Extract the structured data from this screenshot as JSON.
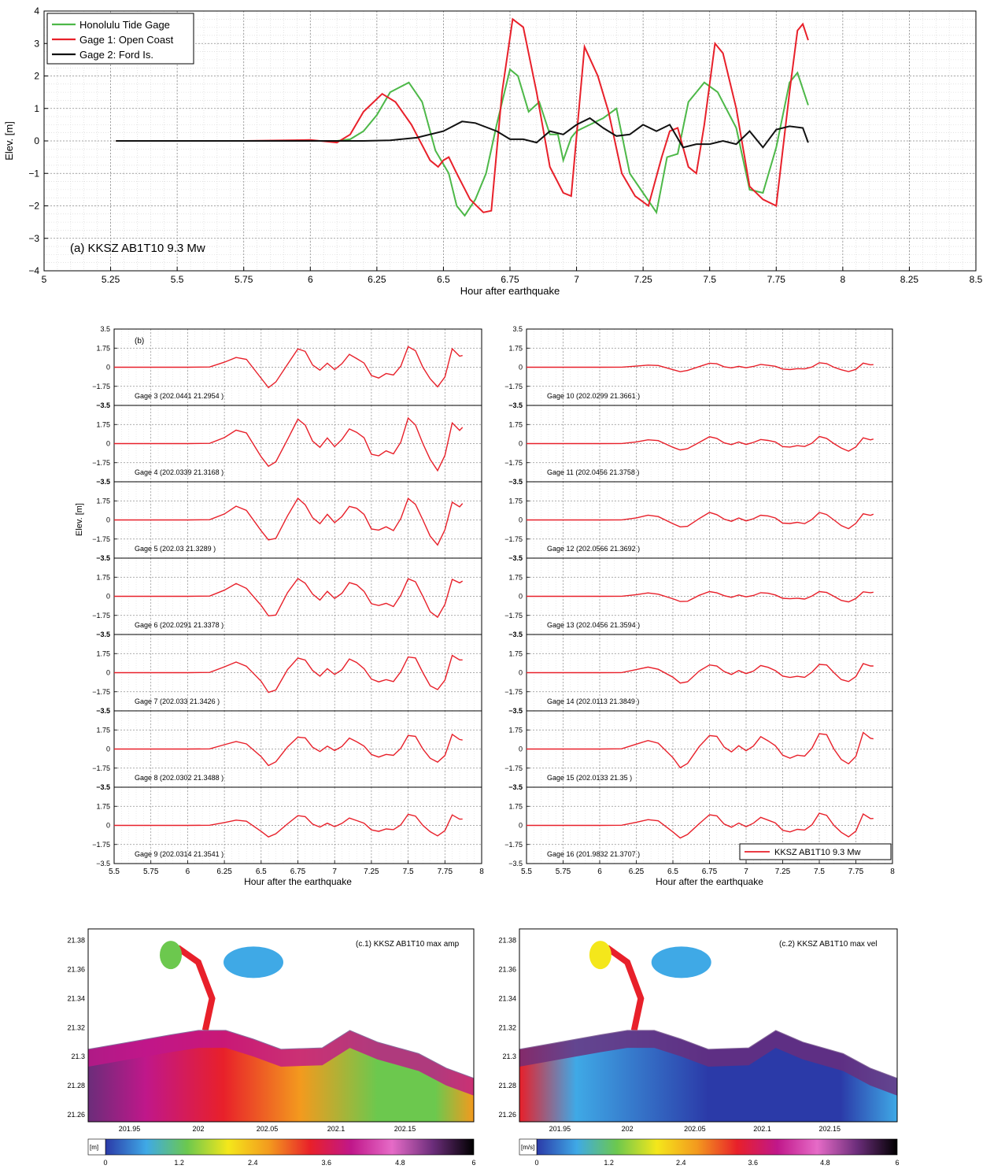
{
  "chart_data": [
    {
      "type": "line",
      "panel": "a",
      "title": "",
      "annotation": "(a)  KKSZ  AB1T10  9.3 Mw",
      "xlabel": "Hour after earthquake",
      "ylabel": "Elev. [m]",
      "xlim": [
        5,
        8.5
      ],
      "ylim": [
        -4,
        4
      ],
      "xticks": [
        "5",
        "5.25",
        "5.5",
        "5.75",
        "6",
        "6.25",
        "6.5",
        "6.75",
        "7",
        "7.25",
        "7.5",
        "7.75",
        "8",
        "8.25",
        "8.5"
      ],
      "yticks": [
        "4",
        "3",
        "2",
        "1",
        "0",
        "−1",
        "−2",
        "−3",
        "−4"
      ],
      "grid": true,
      "legend_position": "top-left",
      "series": [
        {
          "name": "Honolulu Tide Gage",
          "color": "#4db848",
          "points": [
            [
              5.27,
              0
            ],
            [
              5.5,
              0
            ],
            [
              5.75,
              0
            ],
            [
              6.0,
              0
            ],
            [
              6.1,
              0
            ],
            [
              6.15,
              0.05
            ],
            [
              6.2,
              0.3
            ],
            [
              6.25,
              0.8
            ],
            [
              6.3,
              1.5
            ],
            [
              6.37,
              1.8
            ],
            [
              6.42,
              1.2
            ],
            [
              6.47,
              -0.3
            ],
            [
              6.52,
              -1.0
            ],
            [
              6.55,
              -2.0
            ],
            [
              6.58,
              -2.3
            ],
            [
              6.62,
              -1.8
            ],
            [
              6.66,
              -1.0
            ],
            [
              6.7,
              0.5
            ],
            [
              6.75,
              2.2
            ],
            [
              6.78,
              2.0
            ],
            [
              6.82,
              0.9
            ],
            [
              6.86,
              1.2
            ],
            [
              6.9,
              0.2
            ],
            [
              6.93,
              0.2
            ],
            [
              6.95,
              -0.6
            ],
            [
              6.98,
              0.1
            ],
            [
              7.0,
              0.3
            ],
            [
              7.05,
              0.5
            ],
            [
              7.1,
              0.7
            ],
            [
              7.15,
              1.0
            ],
            [
              7.2,
              -1.0
            ],
            [
              7.25,
              -1.6
            ],
            [
              7.3,
              -2.2
            ],
            [
              7.34,
              -0.5
            ],
            [
              7.38,
              -0.4
            ],
            [
              7.42,
              1.2
            ],
            [
              7.48,
              1.8
            ],
            [
              7.53,
              1.5
            ],
            [
              7.6,
              0.4
            ],
            [
              7.65,
              -1.5
            ],
            [
              7.7,
              -1.6
            ],
            [
              7.75,
              -0.2
            ],
            [
              7.8,
              1.8
            ],
            [
              7.83,
              2.1
            ],
            [
              7.87,
              1.1
            ]
          ]
        },
        {
          "name": "Gage 1: Open Coast",
          "color": "#e8202a",
          "points": [
            [
              5.27,
              0
            ],
            [
              5.5,
              0
            ],
            [
              5.75,
              0
            ],
            [
              6.0,
              0.03
            ],
            [
              6.1,
              -0.05
            ],
            [
              6.15,
              0.2
            ],
            [
              6.2,
              0.9
            ],
            [
              6.27,
              1.45
            ],
            [
              6.32,
              1.2
            ],
            [
              6.38,
              0.5
            ],
            [
              6.45,
              -0.6
            ],
            [
              6.48,
              -0.8
            ],
            [
              6.5,
              -0.6
            ],
            [
              6.52,
              -0.5
            ],
            [
              6.55,
              -1.0
            ],
            [
              6.6,
              -1.8
            ],
            [
              6.65,
              -2.2
            ],
            [
              6.68,
              -2.15
            ],
            [
              6.72,
              1.5
            ],
            [
              6.76,
              3.75
            ],
            [
              6.8,
              3.5
            ],
            [
              6.85,
              1.5
            ],
            [
              6.9,
              -0.8
            ],
            [
              6.95,
              -1.6
            ],
            [
              6.98,
              -1.7
            ],
            [
              7.03,
              2.9
            ],
            [
              7.08,
              2.0
            ],
            [
              7.12,
              0.9
            ],
            [
              7.17,
              -1.0
            ],
            [
              7.22,
              -1.7
            ],
            [
              7.27,
              -2.0
            ],
            [
              7.32,
              -0.5
            ],
            [
              7.35,
              0.3
            ],
            [
              7.38,
              0.4
            ],
            [
              7.42,
              -0.8
            ],
            [
              7.45,
              -1.0
            ],
            [
              7.48,
              0.5
            ],
            [
              7.52,
              3.0
            ],
            [
              7.55,
              2.7
            ],
            [
              7.6,
              1.0
            ],
            [
              7.65,
              -1.4
            ],
            [
              7.7,
              -1.8
            ],
            [
              7.75,
              -2.0
            ],
            [
              7.8,
              1.5
            ],
            [
              7.83,
              3.4
            ],
            [
              7.85,
              3.6
            ],
            [
              7.87,
              3.1
            ]
          ]
        },
        {
          "name": "Gage 2: Ford Is.",
          "color": "#111111",
          "points": [
            [
              5.27,
              0
            ],
            [
              5.5,
              0
            ],
            [
              5.75,
              0
            ],
            [
              6.0,
              0
            ],
            [
              6.2,
              0
            ],
            [
              6.3,
              0.02
            ],
            [
              6.4,
              0.1
            ],
            [
              6.5,
              0.3
            ],
            [
              6.57,
              0.6
            ],
            [
              6.62,
              0.55
            ],
            [
              6.7,
              0.3
            ],
            [
              6.75,
              0.05
            ],
            [
              6.8,
              0.05
            ],
            [
              6.85,
              -0.05
            ],
            [
              6.9,
              0.3
            ],
            [
              6.95,
              0.2
            ],
            [
              7.0,
              0.5
            ],
            [
              7.05,
              0.7
            ],
            [
              7.1,
              0.4
            ],
            [
              7.15,
              0.15
            ],
            [
              7.2,
              0.2
            ],
            [
              7.25,
              0.5
            ],
            [
              7.3,
              0.3
            ],
            [
              7.35,
              0.5
            ],
            [
              7.4,
              -0.2
            ],
            [
              7.45,
              -0.1
            ],
            [
              7.5,
              -0.1
            ],
            [
              7.55,
              0.0
            ],
            [
              7.6,
              -0.1
            ],
            [
              7.65,
              0.3
            ],
            [
              7.7,
              -0.2
            ],
            [
              7.75,
              0.35
            ],
            [
              7.8,
              0.45
            ],
            [
              7.85,
              0.4
            ],
            [
              7.87,
              -0.05
            ]
          ]
        }
      ]
    },
    {
      "type": "line",
      "panel": "b",
      "annotation": "(b)",
      "xlabel": "Hour after the earthquake",
      "ylabel": "Elev. [m]",
      "xlim": [
        5.5,
        8
      ],
      "ylim": [
        -3.5,
        3.5
      ],
      "xticks": [
        "5.5",
        "5.75",
        "6",
        "6.25",
        "6.5",
        "6.75",
        "7",
        "7.25",
        "7.5",
        "7.75",
        "8"
      ],
      "yticks": [
        "3.5",
        "1.75",
        "0",
        "−1.75",
        "−3.5"
      ],
      "grid": true,
      "legend_entry": "KKSZ  AB1T10 9.3 Mw",
      "legend_position": "bottom-right",
      "line_color": "#e8202a",
      "gages": [
        {
          "label": "Gage 3  (202.0441      21.2954 )",
          "column": "left",
          "row": 0,
          "amp": 1.0
        },
        {
          "label": "Gage 4  (202.0339      21.3168 )",
          "column": "left",
          "row": 1,
          "amp": 1.25
        },
        {
          "label": "Gage 5  (202.03      21.3289 )",
          "column": "left",
          "row": 2,
          "amp": 1.15
        },
        {
          "label": "Gage 6  (202.0291      21.3378 )",
          "column": "left",
          "row": 3,
          "amp": 1.05
        },
        {
          "label": "Gage 7  (202.033      21.3426 )",
          "column": "left",
          "row": 4,
          "amp": 0.95
        },
        {
          "label": "Gage 8  (202.0302      21.3488 )",
          "column": "left",
          "row": 5,
          "amp": 0.75
        },
        {
          "label": "Gage 9  (202.0314      21.3541 )",
          "column": "left",
          "row": 6,
          "amp": 0.55
        },
        {
          "label": "Gage 10  (202.0299      21.3661 )",
          "column": "right",
          "row": 0,
          "amp": 0.22
        },
        {
          "label": "Gage 11  (202.0456      21.3758 )",
          "column": "right",
          "row": 1,
          "amp": 0.35
        },
        {
          "label": "Gage 12  (202.0566      21.3692 )",
          "column": "right",
          "row": 2,
          "amp": 0.4
        },
        {
          "label": "Gage 13  (202.0456      21.3594 )",
          "column": "right",
          "row": 3,
          "amp": 0.28
        },
        {
          "label": "Gage 14  (202.0113      21.3849 )",
          "column": "right",
          "row": 4,
          "amp": 0.5
        },
        {
          "label": "Gage 15  (202.0133      21.35 )",
          "column": "right",
          "row": 5,
          "amp": 0.85
        },
        {
          "label": "Gage 16  (201.9832      21.3707 )",
          "column": "right",
          "row": 6,
          "amp": 0.6
        }
      ],
      "base_waveform": [
        [
          5.5,
          0
        ],
        [
          6.0,
          0
        ],
        [
          6.15,
          0.02
        ],
        [
          6.25,
          0.5
        ],
        [
          6.33,
          1.0
        ],
        [
          6.4,
          0.7
        ],
        [
          6.5,
          -0.9
        ],
        [
          6.55,
          -1.8
        ],
        [
          6.6,
          -1.5
        ],
        [
          6.68,
          0.3
        ],
        [
          6.75,
          1.6
        ],
        [
          6.8,
          1.3
        ],
        [
          6.85,
          0.2
        ],
        [
          6.9,
          -0.3
        ],
        [
          6.95,
          0.4
        ],
        [
          7.0,
          -0.2
        ],
        [
          7.05,
          0.3
        ],
        [
          7.1,
          1.2
        ],
        [
          7.15,
          0.9
        ],
        [
          7.2,
          0.4
        ],
        [
          7.25,
          -0.7
        ],
        [
          7.3,
          -0.9
        ],
        [
          7.35,
          -0.6
        ],
        [
          7.4,
          -0.8
        ],
        [
          7.45,
          0.1
        ],
        [
          7.5,
          1.7
        ],
        [
          7.55,
          1.4
        ],
        [
          7.6,
          0.0
        ],
        [
          7.65,
          -1.2
        ],
        [
          7.7,
          -1.8
        ],
        [
          7.75,
          -0.8
        ],
        [
          7.8,
          1.6
        ],
        [
          7.85,
          1.1
        ],
        [
          7.87,
          1.2
        ]
      ]
    },
    {
      "type": "heatmap",
      "panel": "c.1",
      "title": "(c.1) KKSZ AB1T10  max amp",
      "xticks": [
        "201.95",
        "202",
        "202.05",
        "202.1",
        "202.15"
      ],
      "yticks": [
        "21.38",
        "21.36",
        "21.34",
        "21.32",
        "21.3",
        "21.28",
        "21.26"
      ],
      "xlim": [
        201.92,
        202.2
      ],
      "ylim": [
        21.255,
        21.388
      ],
      "colorbar": {
        "unit": "[m]",
        "ticks": [
          "0",
          "1.2",
          "2.4",
          "3.6",
          "4.8",
          "6"
        ],
        "range": [
          0,
          6
        ]
      },
      "colormap": [
        "#2b3aa8",
        "#3fa9e6",
        "#6cc84e",
        "#f4e71b",
        "#f39a1e",
        "#e8202a",
        "#c0178a",
        "#e66bc7",
        "#6b2d7a",
        "#000000"
      ]
    },
    {
      "type": "heatmap",
      "panel": "c.2",
      "title": "(c.2) KKSZ AB1T10  max vel",
      "xticks": [
        "201.95",
        "202",
        "202.05",
        "202.1",
        "202.15"
      ],
      "yticks": [
        "21.38",
        "21.36",
        "21.34",
        "21.32",
        "21.3",
        "21.28",
        "21.26"
      ],
      "xlim": [
        201.92,
        202.2
      ],
      "ylim": [
        21.255,
        21.388
      ],
      "colorbar": {
        "unit": "[m/s]",
        "ticks": [
          "0",
          "1.2",
          "2.4",
          "3.6",
          "4.8",
          "6"
        ],
        "range": [
          0,
          6
        ]
      },
      "colormap": [
        "#2b3aa8",
        "#3fa9e6",
        "#6cc84e",
        "#f4e71b",
        "#f39a1e",
        "#e8202a",
        "#c0178a",
        "#e66bc7",
        "#6b2d7a",
        "#000000"
      ]
    }
  ]
}
